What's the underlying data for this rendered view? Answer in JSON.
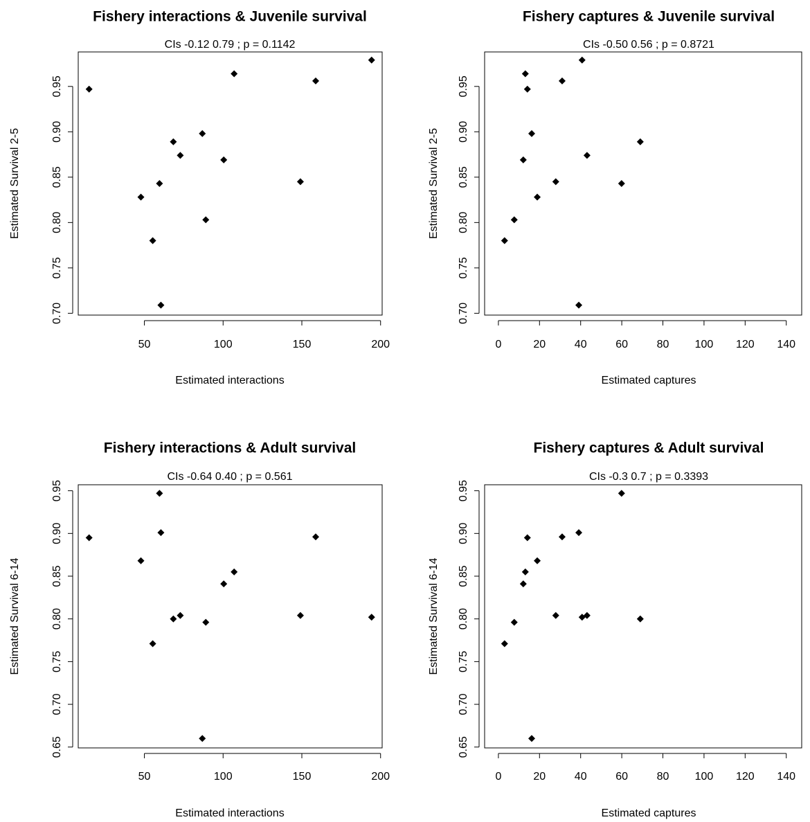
{
  "chart_data": [
    {
      "type": "scatter",
      "title": "Fishery interactions & Juvenile survival",
      "subtitle": "CIs -0.12  0.79 ; p = 0.1142",
      "xlabel": "Estimated interactions",
      "ylabel": "Estimated Survival 2-5",
      "color": "#000000",
      "x": [
        14.9,
        107.0,
        158.8,
        194.3,
        86.8,
        68.4,
        72.8,
        100.4,
        59.6,
        149.1,
        47.8,
        89.0,
        55.3,
        60.5
      ],
      "values": [
        0.947,
        0.964,
        0.956,
        0.979,
        0.898,
        0.889,
        0.874,
        0.869,
        0.843,
        0.845,
        0.828,
        0.803,
        0.78,
        0.709
      ],
      "xlim": [
        8,
        201
      ],
      "ylim": [
        0.698,
        0.988
      ],
      "xticks": [
        50,
        100,
        150,
        200
      ],
      "yticks": [
        {
          "value": 0.7,
          "label": "0.70"
        },
        0.75,
        {
          "value": 0.8,
          "label": "0.80"
        },
        0.85,
        {
          "value": 0.9,
          "label": "0.90"
        },
        0.95
      ]
    },
    {
      "type": "scatter",
      "title": "Fishery captures & Juvenile survival",
      "subtitle": "CIs -0.50  0.56 ; p = 0.8721",
      "xlabel": "Estimated captures",
      "ylabel": "Estimated Survival 2-5",
      "color": "#000000",
      "x": [
        13.1,
        14.1,
        40.7,
        31.0,
        16.2,
        69.0,
        43.1,
        12.1,
        59.9,
        27.9,
        18.9,
        7.7,
        3.0,
        39.1
      ],
      "values": [
        0.964,
        0.947,
        0.979,
        0.956,
        0.898,
        0.889,
        0.874,
        0.869,
        0.843,
        0.845,
        0.828,
        0.803,
        0.78,
        0.709
      ],
      "xlim": [
        -6.7,
        147.5
      ],
      "ylim": [
        0.698,
        0.988
      ],
      "xticks": [
        0,
        20,
        40,
        60,
        80,
        100,
        120,
        140
      ],
      "yticks": [
        {
          "value": 0.7,
          "label": "0.70"
        },
        0.75,
        {
          "value": 0.8,
          "label": "0.80"
        },
        0.85,
        {
          "value": 0.9,
          "label": "0.90"
        },
        0.95
      ]
    },
    {
      "type": "scatter",
      "title": "Fishery interactions & Adult survival",
      "subtitle": "CIs -0.64  0.40 ; p = 0.561",
      "xlabel": "Estimated interactions",
      "ylabel": "Estimated Survival 6-14",
      "color": "#000000",
      "x": [
        14.9,
        47.8,
        59.6,
        60.5,
        158.8,
        100.4,
        107.0,
        68.4,
        72.8,
        149.1,
        194.3,
        89.0,
        55.3,
        86.8
      ],
      "values": [
        0.895,
        0.868,
        0.947,
        0.901,
        0.896,
        0.841,
        0.855,
        0.8,
        0.804,
        0.804,
        0.802,
        0.796,
        0.771,
        0.66
      ],
      "xlim": [
        8,
        201
      ],
      "ylim": [
        0.649,
        0.957
      ],
      "xticks": [
        50,
        100,
        150,
        200
      ],
      "yticks": [
        0.65,
        {
          "value": 0.7,
          "label": "0.70"
        },
        0.75,
        {
          "value": 0.8,
          "label": "0.80"
        },
        0.85,
        {
          "value": 0.9,
          "label": "0.90"
        },
        0.95
      ]
    },
    {
      "type": "scatter",
      "title": "Fishery captures & Adult survival",
      "subtitle": "CIs -0.3  0.7 ; p = 0.3393",
      "xlabel": "Estimated captures",
      "ylabel": "Estimated Survival 6-14",
      "color": "#000000",
      "x": [
        59.9,
        39.1,
        14.1,
        31.0,
        13.1,
        12.1,
        18.9,
        27.9,
        40.7,
        43.1,
        69.0,
        7.7,
        3.0,
        16.2
      ],
      "values": [
        0.947,
        0.901,
        0.895,
        0.896,
        0.855,
        0.841,
        0.868,
        0.804,
        0.802,
        0.804,
        0.8,
        0.796,
        0.771,
        0.66
      ],
      "xlim": [
        -6.7,
        147.5
      ],
      "ylim": [
        0.649,
        0.957
      ],
      "xticks": [
        0,
        20,
        40,
        60,
        80,
        100,
        120,
        140
      ],
      "yticks": [
        0.65,
        {
          "value": 0.7,
          "label": "0.70"
        },
        0.75,
        {
          "value": 0.8,
          "label": "0.80"
        },
        0.85,
        {
          "value": 0.9,
          "label": "0.90"
        },
        0.95
      ]
    }
  ]
}
